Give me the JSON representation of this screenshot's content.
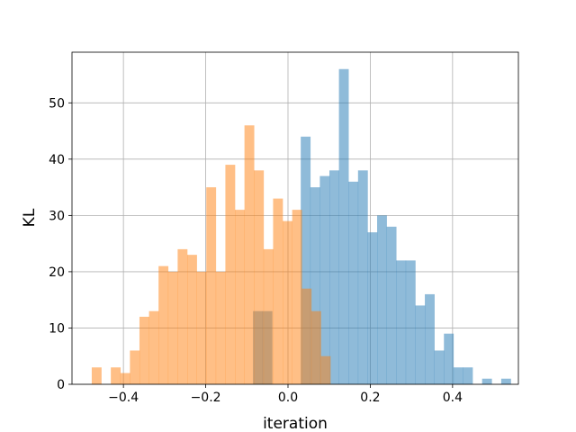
{
  "chart_data": {
    "type": "bar",
    "title": "",
    "xlabel": "iteration",
    "ylabel": "KL",
    "xlim": [
      -0.525,
      0.56
    ],
    "ylim": [
      0,
      59
    ],
    "xticks": [
      -0.4,
      -0.2,
      0.0,
      0.2,
      0.4
    ],
    "xtick_labels": [
      "−0.4",
      "−0.2",
      "0.0",
      "0.2",
      "0.4"
    ],
    "yticks": [
      0,
      10,
      20,
      30,
      40,
      50
    ],
    "ytick_labels": [
      "0",
      "10",
      "20",
      "30",
      "40",
      "50"
    ],
    "grid": true,
    "legend": "none",
    "series": [
      {
        "color": "#1f77b4",
        "opacity": 0.5,
        "bin_start": -0.085,
        "bin_width": 0.0232,
        "values": [
          13,
          13,
          0,
          0,
          0,
          44,
          35,
          37,
          38,
          56,
          36,
          38,
          27,
          30,
          28,
          22,
          22,
          14,
          16,
          6,
          9,
          3,
          3,
          0,
          1,
          0,
          1
        ]
      },
      {
        "color": "#ff7f0e",
        "opacity": 0.5,
        "bin_start": -0.477,
        "bin_width": 0.0232,
        "values": [
          3,
          0,
          3,
          2,
          6,
          12,
          13,
          21,
          20,
          24,
          23,
          20,
          35,
          20,
          39,
          31,
          46,
          38,
          24,
          33,
          29,
          31,
          17,
          13,
          5
        ]
      }
    ]
  }
}
